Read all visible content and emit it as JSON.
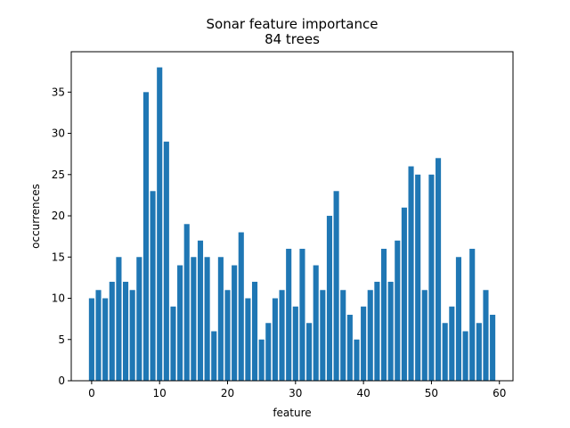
{
  "chart_data": {
    "type": "bar",
    "title": "Sonar feature importance",
    "subtitle": "84 trees",
    "xlabel": "feature",
    "ylabel": "occurrences",
    "xlim": [
      -3,
      62
    ],
    "ylim": [
      0,
      39.9
    ],
    "xticks": [
      0,
      10,
      20,
      30,
      40,
      50,
      60
    ],
    "yticks": [
      0,
      5,
      10,
      15,
      20,
      25,
      30,
      35
    ],
    "grid": false,
    "bar_color": "#1f77b4",
    "x": [
      0,
      1,
      2,
      3,
      4,
      5,
      6,
      7,
      8,
      9,
      10,
      11,
      12,
      13,
      14,
      15,
      16,
      17,
      18,
      19,
      20,
      21,
      22,
      23,
      24,
      25,
      26,
      27,
      28,
      29,
      30,
      31,
      32,
      33,
      34,
      35,
      36,
      37,
      38,
      39,
      40,
      41,
      42,
      43,
      44,
      45,
      46,
      47,
      48,
      49,
      50,
      51,
      52,
      53,
      54,
      55,
      56,
      57,
      58,
      59
    ],
    "values": [
      10,
      11,
      10,
      12,
      15,
      12,
      11,
      15,
      35,
      23,
      38,
      29,
      9,
      14,
      19,
      15,
      17,
      15,
      6,
      15,
      11,
      14,
      18,
      10,
      12,
      5,
      7,
      10,
      11,
      16,
      9,
      16,
      7,
      14,
      11,
      20,
      23,
      11,
      8,
      5,
      9,
      11,
      12,
      16,
      12,
      17,
      21,
      26,
      25,
      11,
      25,
      27,
      7,
      9,
      15,
      6,
      16,
      7,
      11,
      8
    ]
  }
}
